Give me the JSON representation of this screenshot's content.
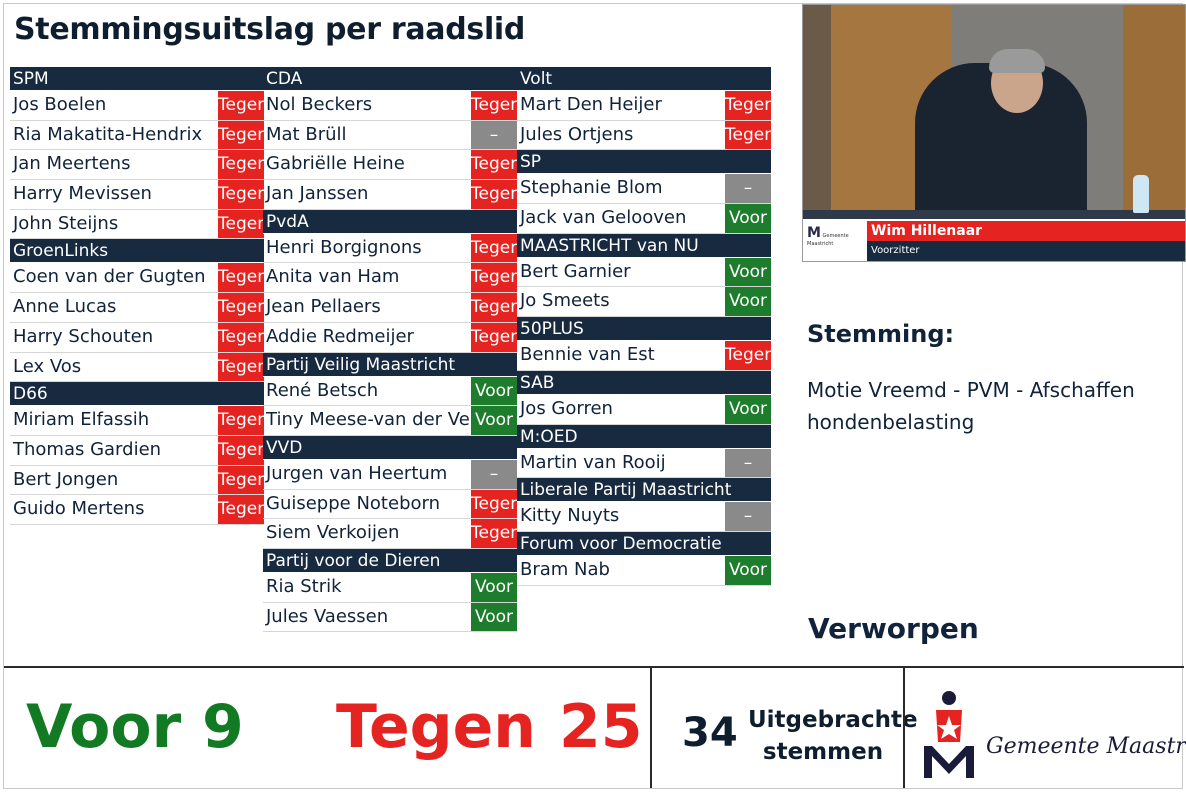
{
  "title": "Stemmingsuitslag per raadslid",
  "columns": [
    {
      "groups": [
        {
          "party": "SPM",
          "members": [
            {
              "name": "Jos Boelen",
              "vote": "Tegen"
            },
            {
              "name": "Ria Makatita-Hendrix",
              "vote": "Tegen"
            },
            {
              "name": "Jan Meertens",
              "vote": "Tegen"
            },
            {
              "name": "Harry Mevissen",
              "vote": "Tegen"
            },
            {
              "name": "John Steijns",
              "vote": "Tegen"
            }
          ]
        },
        {
          "party": "GroenLinks",
          "members": [
            {
              "name": "Coen van der Gugten",
              "vote": "Tegen"
            },
            {
              "name": "Anne Lucas",
              "vote": "Tegen"
            },
            {
              "name": "Harry Schouten",
              "vote": "Tegen"
            },
            {
              "name": "Lex Vos",
              "vote": "Tegen"
            }
          ]
        },
        {
          "party": "D66",
          "members": [
            {
              "name": "Miriam Elfassih",
              "vote": "Tegen"
            },
            {
              "name": "Thomas Gardien",
              "vote": "Tegen"
            },
            {
              "name": "Bert Jongen",
              "vote": "Tegen"
            },
            {
              "name": "Guido Mertens",
              "vote": "Tegen"
            }
          ]
        }
      ]
    },
    {
      "groups": [
        {
          "party": "CDA",
          "members": [
            {
              "name": "Nol Beckers",
              "vote": "Tegen"
            },
            {
              "name": "Mat Brüll",
              "vote": "–"
            },
            {
              "name": "Gabriëlle Heine",
              "vote": "Tegen"
            },
            {
              "name": "Jan Janssen",
              "vote": "Tegen"
            }
          ]
        },
        {
          "party": "PvdA",
          "members": [
            {
              "name": "Henri Borgignons",
              "vote": "Tegen"
            },
            {
              "name": "Anita van Ham",
              "vote": "Tegen"
            },
            {
              "name": "Jean Pellaers",
              "vote": "Tegen"
            },
            {
              "name": "Addie Redmeijer",
              "vote": "Tegen"
            }
          ]
        },
        {
          "party": "Partij Veilig Maastricht",
          "members": [
            {
              "name": "René Betsch",
              "vote": "Voor"
            },
            {
              "name": "Tiny Meese-van der Venne",
              "vote": "Voor"
            }
          ]
        },
        {
          "party": "VVD",
          "members": [
            {
              "name": "Jurgen van Heertum",
              "vote": "–"
            },
            {
              "name": "Guiseppe Noteborn",
              "vote": "Tegen"
            },
            {
              "name": "Siem Verkoijen",
              "vote": "Tegen"
            }
          ]
        },
        {
          "party": "Partij voor de Dieren",
          "members": [
            {
              "name": "Ria Strik",
              "vote": "Voor"
            },
            {
              "name": "Jules Vaessen",
              "vote": "Voor"
            }
          ]
        }
      ]
    },
    {
      "groups": [
        {
          "party": "Volt",
          "members": [
            {
              "name": "Mart Den Heijer",
              "vote": "Tegen"
            },
            {
              "name": "Jules Ortjens",
              "vote": "Tegen"
            }
          ]
        },
        {
          "party": "SP",
          "members": [
            {
              "name": "Stephanie Blom",
              "vote": "–"
            },
            {
              "name": "Jack van Gelooven",
              "vote": "Voor"
            }
          ]
        },
        {
          "party": "MAASTRICHT van NU",
          "members": [
            {
              "name": "Bert Garnier",
              "vote": "Voor"
            },
            {
              "name": "Jo Smeets",
              "vote": "Voor"
            }
          ]
        },
        {
          "party": "50PLUS",
          "members": [
            {
              "name": "Bennie van Est",
              "vote": "Tegen"
            }
          ]
        },
        {
          "party": "SAB",
          "members": [
            {
              "name": "Jos Gorren",
              "vote": "Voor"
            }
          ]
        },
        {
          "party": "M:OED",
          "members": [
            {
              "name": "Martin van Rooij",
              "vote": "–"
            }
          ]
        },
        {
          "party": "Liberale Partij Maastricht",
          "members": [
            {
              "name": "Kitty Nuyts",
              "vote": "–"
            }
          ]
        },
        {
          "party": "Forum voor Democratie",
          "members": [
            {
              "name": "Bram Nab",
              "vote": "Voor"
            }
          ]
        }
      ]
    }
  ],
  "video": {
    "speaker_name": "Wim Hillenaar",
    "speaker_role": "Voorzitter",
    "logo_text": "Gemeente Maastricht"
  },
  "stemming": {
    "label": "Stemming:",
    "motion": "Motie Vreemd - PVM - Afschaffen hondenbelasting",
    "result": "Verworpen"
  },
  "totals": {
    "voor_label": "Voor",
    "voor_count": "9",
    "tegen_label": "Tegen",
    "tegen_count": "25",
    "cast_count": "34",
    "cast_label": "Uitgebrachte stemmen"
  },
  "logo": {
    "text": "Gemeente Maastricht"
  },
  "colors": {
    "tegen": "#e52421",
    "voor": "#1e7d2c",
    "absent": "#8a8a8a",
    "header": "#172a40"
  }
}
